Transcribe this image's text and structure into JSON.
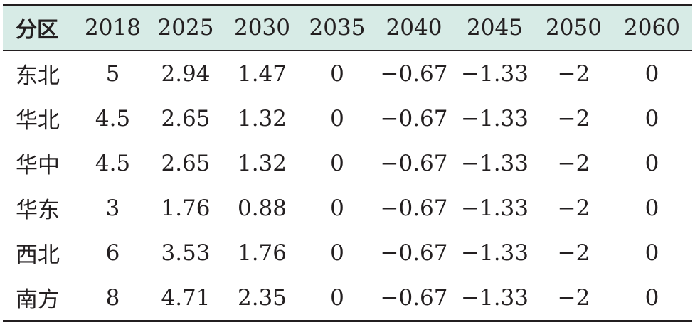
{
  "table": {
    "header": [
      "分区",
      "2018",
      "2025",
      "2030",
      "2035",
      "2040",
      "2045",
      "2050",
      "2060"
    ],
    "rows": [
      [
        "东北",
        "5",
        "2.94",
        "1.47",
        "0",
        "−0.67",
        "−1.33",
        "−2",
        "0"
      ],
      [
        "华北",
        "4.5",
        "2.65",
        "1.32",
        "0",
        "−0.67",
        "−1.33",
        "−2",
        "0"
      ],
      [
        "华中",
        "4.5",
        "2.65",
        "1.32",
        "0",
        "−0.67",
        "−1.33",
        "−2",
        "0"
      ],
      [
        "华东",
        "3",
        "1.76",
        "0.88",
        "0",
        "−0.67",
        "−1.33",
        "−2",
        "0"
      ],
      [
        "西北",
        "6",
        "3.53",
        "1.76",
        "0",
        "−0.67",
        "−1.33",
        "−2",
        "0"
      ],
      [
        "南方",
        "8",
        "4.71",
        "2.35",
        "0",
        "−0.67",
        "−1.33",
        "−2",
        "0"
      ]
    ]
  },
  "colors": {
    "header_background": "#d7ebe6",
    "text": "#231f20",
    "rules": "#231f20"
  }
}
